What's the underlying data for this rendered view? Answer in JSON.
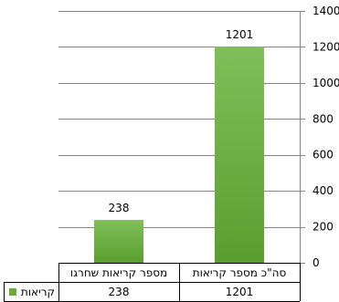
{
  "chart_data": {
    "type": "bar",
    "orientation": "rtl",
    "categories": [
      "סה\"כ מספר קריאות",
      "מספר קריאות שחרגו"
    ],
    "series": [
      {
        "name": "קריאות",
        "values": [
          1201,
          238
        ],
        "color": "#6aab3c"
      }
    ],
    "ylim": [
      0,
      1400
    ],
    "yticks": [
      0,
      200,
      400,
      600,
      800,
      1000,
      1200,
      1400
    ],
    "y_axis_side": "right",
    "grid": true,
    "data_labels": true,
    "legend_placement": "data-table-left",
    "data_table": true
  }
}
